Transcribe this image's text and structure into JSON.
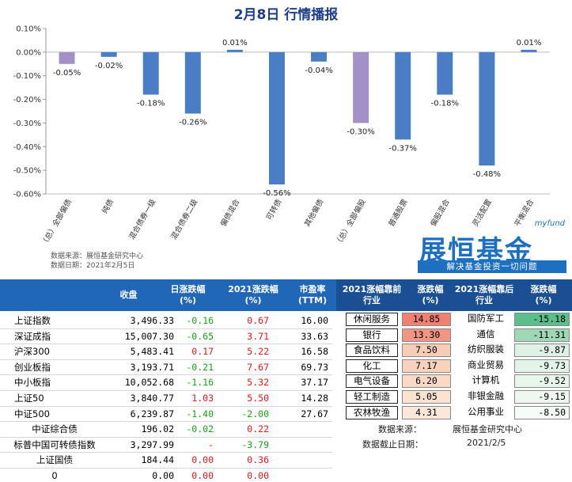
{
  "chart_data": {
    "type": "bar",
    "title": "2月8日  行情播报",
    "categories": [
      "（总）全部偏债",
      "纯债",
      "混合债券一级",
      "混合债券二级",
      "偏债混合",
      "可转债",
      "其他偏债",
      "（总）全部偏股",
      "普通股票",
      "偏股混合",
      "灵活配置",
      "平衡混合"
    ],
    "values": [
      -0.05,
      -0.02,
      -0.18,
      -0.26,
      0.01,
      -0.56,
      -0.04,
      -0.3,
      -0.37,
      -0.18,
      -0.48,
      0.01
    ],
    "value_labels": [
      "-0.05%",
      "-0.02%",
      "-0.18%",
      "-0.26%",
      "0.01%",
      "-0.56%",
      "-0.04%",
      "-0.30%",
      "-0.37%",
      "-0.18%",
      "-0.48%",
      "0.01%"
    ],
    "highlight_categories": [
      "（总）全部偏债",
      "（总）全部偏股"
    ],
    "colors": {
      "normal": "#4a7ec4",
      "highlight": "#a291c7"
    },
    "ylim": [
      -0.6,
      0.1
    ],
    "yticks": [
      0.1,
      0.0,
      -0.1,
      -0.2,
      -0.3,
      -0.4,
      -0.5,
      -0.6
    ],
    "ytick_labels": [
      "0.10%",
      "0.00%",
      "-0.10%",
      "-0.20%",
      "-0.30%",
      "-0.40%",
      "-0.50%",
      "-0.60%"
    ],
    "xlabel": "",
    "ylabel": ""
  },
  "source_note": {
    "line1": "数据来源：展恒基金研究中心",
    "line2": "数据日期：2021年2月5日"
  },
  "logo": {
    "myfund": "myfund",
    "name": "展恒基金",
    "slogan": "解决基金投资一切问题"
  },
  "table": {
    "headers": [
      "收盘",
      "日涨跌幅\n(%)",
      "2021涨跌幅\n(%)",
      "市盈率\n(TTM)",
      "2021涨幅靠前\n行业",
      "涨跌幅\n(%)",
      "2021涨幅靠后\n行业",
      "涨跌幅\n(%)"
    ],
    "indices": [
      {
        "name": "上证指数",
        "close": "3,496.33",
        "day": "-0.16",
        "ytd": "0.67",
        "pe": "16.00"
      },
      {
        "name": "深证成指",
        "close": "15,007.30",
        "day": "-0.65",
        "ytd": "3.71",
        "pe": "33.63"
      },
      {
        "name": "沪深300",
        "close": "5,483.41",
        "day": "0.17",
        "ytd": "5.22",
        "pe": "16.58"
      },
      {
        "name": "创业板指",
        "close": "3,193.71",
        "day": "-0.21",
        "ytd": "7.67",
        "pe": "69.73"
      },
      {
        "name": "中小板指",
        "close": "10,052.68",
        "day": "-1.16",
        "ytd": "5.32",
        "pe": "37.17"
      },
      {
        "name": "上证50",
        "close": "3,840.77",
        "day": "1.03",
        "ytd": "5.50",
        "pe": "14.28"
      },
      {
        "name": "中证500",
        "close": "6,239.87",
        "day": "-1.40",
        "ytd": "-2.00",
        "pe": "27.67"
      },
      {
        "name": "中证综合债",
        "close": "196.02",
        "day": "-0.02",
        "ytd": "0.22",
        "pe": ""
      },
      {
        "name": "标普中国可转债指数",
        "close": "3,297.99",
        "day": "-",
        "ytd": "-3.79",
        "pe": ""
      },
      {
        "name": "上证国债",
        "close": "184.44",
        "day": "0.00",
        "ytd": "0.36",
        "pe": ""
      },
      {
        "name": "0",
        "close": "0.00",
        "day": "0.00",
        "ytd": "0.00",
        "pe": ""
      }
    ],
    "top_industries": [
      {
        "name": "休闲服务",
        "value": "14.85",
        "color": "#f08070"
      },
      {
        "name": "银行",
        "value": "13.30",
        "color": "#f39484"
      },
      {
        "name": "食品饮料",
        "value": "7.50",
        "color": "#f8cdb8"
      },
      {
        "name": "化工",
        "value": "7.17",
        "color": "#f9d2bd"
      },
      {
        "name": "电气设备",
        "value": "6.20",
        "color": "#fad9c6"
      },
      {
        "name": "轻工制造",
        "value": "5.05",
        "color": "#fbe2d1"
      },
      {
        "name": "农林牧渔",
        "value": "4.31",
        "color": "#fce8da"
      }
    ],
    "bottom_industries": [
      {
        "name": "国防军工",
        "value": "-15.18",
        "color": "#5bbf8a"
      },
      {
        "name": "通信",
        "value": "-11.31",
        "color": "#9fd8b5"
      },
      {
        "name": "纺织服装",
        "value": "-9.87",
        "color": "#dff1e4"
      },
      {
        "name": "商业贸易",
        "value": "-9.73",
        "color": "#e3f3e7"
      },
      {
        "name": "计算机",
        "value": "-9.52",
        "color": "#e9f6ec"
      },
      {
        "name": "非银金融",
        "value": "-9.15",
        "color": "#eef8f0"
      },
      {
        "name": "公用事业",
        "value": "-8.50",
        "color": "#f5fbf6"
      }
    ],
    "footer": {
      "source_label": "数据来源：",
      "source_value": "展恒基金研究中心",
      "date_label": "数据截止日期：",
      "date_value": "2021/2/5"
    }
  }
}
